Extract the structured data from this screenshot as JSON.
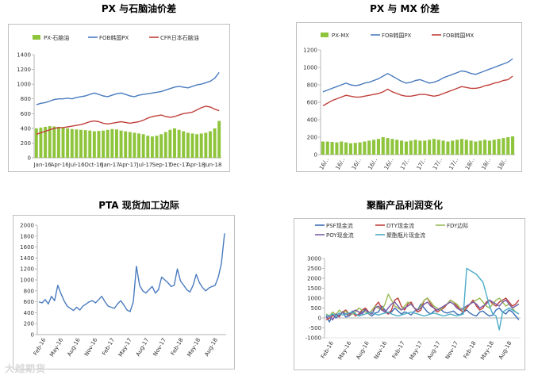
{
  "titles": {
    "c1": "PX 与石脑油价差",
    "c2": "PX 与 MX 价差",
    "c3": "PTA 现货加工边际",
    "c4": "聚酯产品利润变化"
  },
  "watermark": "大越期货",
  "chart_data": [
    {
      "type": "line",
      "title": "PX 与石脑油价差",
      "ylim": [
        0,
        1400
      ],
      "yticks": [
        0,
        200,
        400,
        600,
        800,
        1000,
        1200,
        1400
      ],
      "xticks": [
        "Jan-16",
        "Apr-16",
        "Jul-16",
        "Oct-16",
        "Jan-17",
        "Apr-17",
        "Jul-17",
        "Sep-17",
        "Dec-17",
        "Apr-18",
        "Jun-18"
      ],
      "legend": "top",
      "series": [
        {
          "name": "PX-石脑油",
          "kind": "bar",
          "color": "#8fc43d",
          "values": [
            400,
            410,
            420,
            430,
            425,
            420,
            410,
            400,
            390,
            385,
            380,
            375,
            370,
            360,
            365,
            370,
            380,
            390,
            385,
            370,
            360,
            350,
            340,
            330,
            320,
            300,
            290,
            300,
            320,
            350,
            380,
            400,
            380,
            360,
            340,
            330,
            320,
            330,
            340,
            360,
            400,
            500
          ]
        },
        {
          "name": "FOB韩国PX",
          "kind": "line",
          "color": "#4a7bbf",
          "values": [
            720,
            740,
            750,
            770,
            790,
            800,
            800,
            810,
            800,
            820,
            830,
            840,
            860,
            880,
            860,
            840,
            830,
            850,
            870,
            880,
            860,
            840,
            830,
            850,
            860,
            870,
            880,
            890,
            900,
            920,
            940,
            960,
            970,
            960,
            950,
            970,
            990,
            1000,
            1020,
            1040,
            1080,
            1160
          ]
        },
        {
          "name": "CFR日本石脑油",
          "kind": "line",
          "color": "#c0413c",
          "values": [
            320,
            340,
            360,
            380,
            400,
            410,
            410,
            420,
            430,
            440,
            450,
            470,
            490,
            500,
            490,
            470,
            460,
            470,
            480,
            490,
            480,
            470,
            480,
            490,
            510,
            540,
            560,
            570,
            580,
            560,
            550,
            560,
            580,
            600,
            610,
            620,
            650,
            680,
            700,
            690,
            660,
            640
          ]
        }
      ]
    },
    {
      "type": "line",
      "title": "PX 与 MX 价差",
      "ylim": [
        0,
        1200
      ],
      "yticks": [
        0,
        200,
        400,
        600,
        800,
        1000,
        1200
      ],
      "xticks": [
        "16/..",
        "16/..",
        "16/..",
        "16/..",
        "16/..",
        "17/..",
        "17/..",
        "17/..",
        "17/..",
        "18/..",
        "18/..",
        "18/.."
      ],
      "legend": "top",
      "series": [
        {
          "name": "PX-MX",
          "kind": "bar",
          "color": "#8fc43d",
          "values": [
            150,
            150,
            145,
            140,
            150,
            140,
            130,
            135,
            140,
            150,
            160,
            170,
            180,
            200,
            190,
            180,
            170,
            160,
            150,
            160,
            170,
            160,
            160,
            170,
            180,
            170,
            160,
            150,
            160,
            170,
            180,
            170,
            160,
            150,
            160,
            170,
            160,
            170,
            180,
            190,
            200,
            210
          ]
        },
        {
          "name": "FOB韩国PX",
          "kind": "line",
          "color": "#4a7bbf",
          "values": [
            720,
            740,
            760,
            780,
            800,
            820,
            800,
            790,
            800,
            820,
            830,
            850,
            870,
            900,
            930,
            900,
            870,
            840,
            820,
            830,
            850,
            860,
            840,
            820,
            830,
            850,
            880,
            900,
            920,
            940,
            960,
            950,
            930,
            920,
            940,
            960,
            980,
            1000,
            1020,
            1040,
            1060,
            1100
          ]
        },
        {
          "name": "FOB韩国MX",
          "kind": "line",
          "color": "#c0413c",
          "values": [
            560,
            590,
            620,
            640,
            660,
            680,
            670,
            660,
            660,
            670,
            680,
            690,
            700,
            720,
            750,
            720,
            700,
            680,
            670,
            670,
            680,
            690,
            690,
            680,
            670,
            680,
            700,
            720,
            740,
            760,
            780,
            770,
            760,
            760,
            770,
            790,
            800,
            820,
            830,
            850,
            860,
            900
          ]
        }
      ]
    },
    {
      "type": "line",
      "title": "PTA 现货加工边际",
      "ylim": [
        0,
        2000
      ],
      "yticks": [
        0,
        200,
        400,
        600,
        800,
        1000,
        1200,
        1400,
        1600,
        1800,
        2000
      ],
      "xticks": [
        "Feb-16",
        "May-16",
        "Aug-16",
        "Nov-16",
        "Feb-17",
        "May-17",
        "Aug-17",
        "Nov-17",
        "Feb-18",
        "May-18",
        "Aug-18"
      ],
      "series": [
        {
          "name": "PTA现货加工边际",
          "kind": "line",
          "color": "#4a7bbf",
          "values": [
            600,
            580,
            640,
            560,
            700,
            620,
            900,
            750,
            620,
            520,
            480,
            440,
            500,
            450,
            520,
            560,
            600,
            620,
            580,
            640,
            700,
            600,
            520,
            500,
            480,
            560,
            620,
            540,
            450,
            420,
            600,
            1250,
            900,
            800,
            760,
            820,
            880,
            760,
            820,
            1050,
            1000,
            950,
            880,
            900,
            1200,
            980,
            900,
            820,
            780,
            900,
            1100,
            950,
            860,
            800,
            850,
            880,
            900,
            1050,
            1300,
            1850
          ]
        }
      ]
    },
    {
      "type": "line",
      "title": "聚酯产品利润变化",
      "ylim": [
        -1000,
        3000
      ],
      "yticks": [
        -1000,
        -500,
        0,
        500,
        1000,
        1500,
        2000,
        2500,
        3000
      ],
      "xticks": [
        "Feb-16",
        "May-16",
        "Aug-16",
        "Nov-16",
        "Feb-17",
        "May-17",
        "Aug-17",
        "Nov-17",
        "Feb-18",
        "May-18",
        "Aug-18"
      ],
      "legend": "top",
      "series": [
        {
          "name": "PSF现金流",
          "kind": "line",
          "color": "#3d6fb6",
          "values": [
            100,
            -200,
            200,
            0,
            150,
            300,
            50,
            100,
            350,
            200,
            100,
            300,
            450,
            200,
            100,
            250,
            300,
            600,
            400,
            200,
            300,
            500,
            350,
            200,
            300,
            250,
            150,
            350,
            400,
            700,
            500,
            300,
            200,
            350,
            400,
            450,
            300,
            250,
            300,
            350,
            200,
            150,
            300,
            400,
            250,
            150,
            100,
            300,
            350,
            200,
            100,
            150,
            400,
            500,
            300,
            200,
            400,
            300,
            100,
            -100
          ]
        },
        {
          "name": "DTY现金流",
          "kind": "line",
          "color": "#c0413c",
          "values": [
            -100,
            0,
            100,
            200,
            50,
            300,
            400,
            200,
            300,
            100,
            200,
            400,
            500,
            300,
            200,
            600,
            800,
            500,
            300,
            200,
            400,
            900,
            1000,
            600,
            400,
            700,
            800,
            500,
            300,
            400,
            900,
            1000,
            700,
            500,
            300,
            400,
            500,
            700,
            900,
            800,
            600,
            400,
            300,
            500,
            700,
            900,
            600,
            400,
            500,
            800,
            900,
            700,
            600,
            800,
            900,
            1000,
            800,
            600,
            700,
            900
          ]
        },
        {
          "name": "FDY边际",
          "kind": "line",
          "color": "#9bbb59",
          "values": [
            200,
            100,
            300,
            150,
            400,
            250,
            350,
            100,
            200,
            300,
            500,
            400,
            300,
            200,
            400,
            600,
            500,
            400,
            700,
            1200,
            900,
            600,
            500,
            400,
            600,
            800,
            700,
            500,
            400,
            600,
            900,
            1000,
            800,
            600,
            500,
            400,
            600,
            700,
            900,
            800,
            700,
            500,
            400,
            600,
            700,
            800,
            900,
            1000,
            800,
            600,
            500,
            700,
            900,
            1000,
            800,
            600,
            700,
            500,
            300,
            200
          ]
        },
        {
          "name": "POY现金流",
          "kind": "line",
          "color": "#7a5da6",
          "values": [
            0,
            100,
            -100,
            200,
            100,
            300,
            200,
            100,
            300,
            400,
            300,
            200,
            400,
            300,
            200,
            500,
            600,
            400,
            300,
            500,
            700,
            800,
            600,
            400,
            500,
            600,
            700,
            500,
            400,
            500,
            700,
            800,
            600,
            500,
            400,
            500,
            600,
            700,
            800,
            700,
            500,
            400,
            500,
            600,
            700,
            800,
            700,
            500,
            600,
            700,
            900,
            800,
            700,
            600,
            800,
            900,
            700,
            500,
            600,
            700
          ]
        },
        {
          "name": "聚酯瓶片现金流",
          "kind": "line",
          "color": "#4bacc6",
          "values": [
            150,
            100,
            200,
            100,
            250,
            150,
            200,
            250,
            300,
            200,
            100,
            150,
            200,
            250,
            300,
            200,
            150,
            200,
            250,
            300,
            200,
            150,
            100,
            150,
            200,
            250,
            300,
            250,
            200,
            150,
            100,
            150,
            200,
            250,
            200,
            150,
            100,
            150,
            200,
            150,
            100,
            150,
            200,
            2500,
            2400,
            2300,
            2200,
            2000,
            1800,
            1200,
            600,
            200,
            100,
            -600,
            300,
            400,
            500,
            400,
            300,
            200
          ]
        }
      ]
    }
  ]
}
